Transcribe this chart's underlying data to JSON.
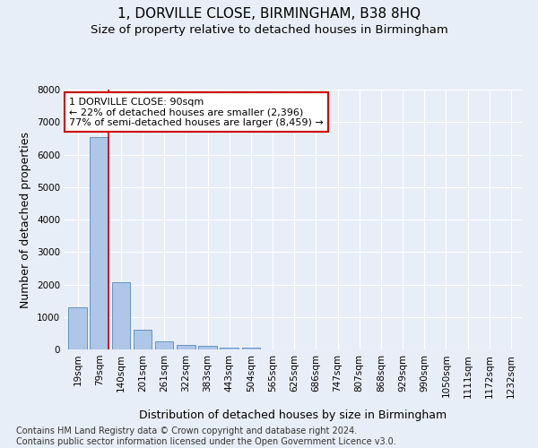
{
  "title": "1, DORVILLE CLOSE, BIRMINGHAM, B38 8HQ",
  "subtitle": "Size of property relative to detached houses in Birmingham",
  "xlabel": "Distribution of detached houses by size in Birmingham",
  "ylabel": "Number of detached properties",
  "footer_line1": "Contains HM Land Registry data © Crown copyright and database right 2024.",
  "footer_line2": "Contains public sector information licensed under the Open Government Licence v3.0.",
  "categories": [
    "19sqm",
    "79sqm",
    "140sqm",
    "201sqm",
    "261sqm",
    "322sqm",
    "383sqm",
    "443sqm",
    "504sqm",
    "565sqm",
    "625sqm",
    "686sqm",
    "747sqm",
    "807sqm",
    "868sqm",
    "929sqm",
    "990sqm",
    "1050sqm",
    "1111sqm",
    "1172sqm",
    "1232sqm"
  ],
  "values": [
    1300,
    6550,
    2080,
    620,
    250,
    130,
    100,
    60,
    60,
    0,
    0,
    0,
    0,
    0,
    0,
    0,
    0,
    0,
    0,
    0,
    0
  ],
  "bar_color": "#aec6e8",
  "bar_edge_color": "#5588bb",
  "highlight_line_color": "#cc0000",
  "annotation_text": "1 DORVILLE CLOSE: 90sqm\n← 22% of detached houses are smaller (2,396)\n77% of semi-detached houses are larger (8,459) →",
  "annotation_box_color": "#ffffff",
  "annotation_box_edge_color": "#cc0000",
  "ylim": [
    0,
    8000
  ],
  "yticks": [
    0,
    1000,
    2000,
    3000,
    4000,
    5000,
    6000,
    7000,
    8000
  ],
  "background_color": "#e8eef8",
  "grid_color": "#ffffff",
  "title_fontsize": 11,
  "subtitle_fontsize": 9.5,
  "axis_label_fontsize": 9,
  "tick_fontsize": 7.5,
  "annotation_fontsize": 8,
  "footer_fontsize": 7
}
